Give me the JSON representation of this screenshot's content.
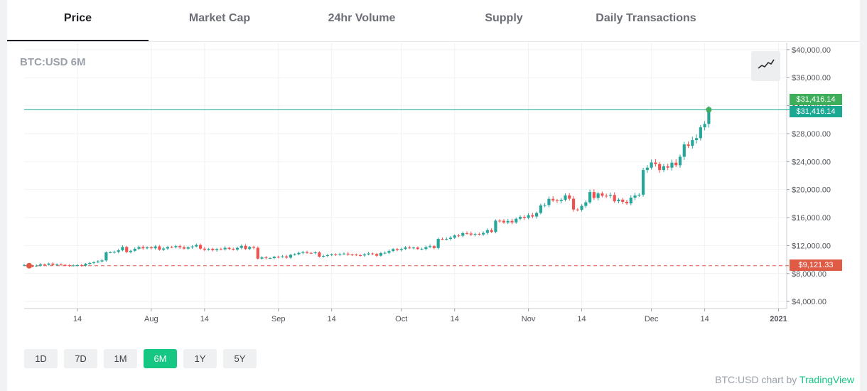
{
  "tabs": [
    {
      "label": "Price",
      "active": true
    },
    {
      "label": "Market Cap",
      "active": false
    },
    {
      "label": "24hr Volume",
      "active": false
    },
    {
      "label": "Supply",
      "active": false
    },
    {
      "label": "Daily Transactions",
      "active": false
    }
  ],
  "ticker_label": "BTC:USD 6M",
  "chart_type_icon": "line-chart-icon",
  "price_tag": "$31,416.14",
  "price_line_tag": "$31,416.14",
  "start_tag": "$9,121.33",
  "range_buttons": [
    {
      "label": "1D",
      "active": false
    },
    {
      "label": "7D",
      "active": false
    },
    {
      "label": "1M",
      "active": false
    },
    {
      "label": "6M",
      "active": true
    },
    {
      "label": "1Y",
      "active": false
    },
    {
      "label": "5Y",
      "active": false
    }
  ],
  "credit": {
    "prefix": "BTC:USD chart by",
    "link": "TradingView"
  },
  "colors": {
    "up": "#26a69a",
    "down": "#ef5350",
    "price_line": "#1aa892",
    "start_line": "#e05b46",
    "accent": "#16c784"
  },
  "chart_data": {
    "type": "candlestick",
    "title": "BTC:USD 6M",
    "y_ticks": [
      "$4,000.00",
      "$8,000.00",
      "$12,000.00",
      "$16,000.00",
      "$20,000.00",
      "$24,000.00",
      "$28,000.00",
      "$32,000.00",
      "$36,000.00",
      "$40,000.00"
    ],
    "ylim": [
      3000,
      41000
    ],
    "x_ticks": [
      {
        "label": "14",
        "date": "2020-07-14"
      },
      {
        "label": "Aug",
        "date": "2020-08-01"
      },
      {
        "label": "14",
        "date": "2020-08-14"
      },
      {
        "label": "Sep",
        "date": "2020-09-01"
      },
      {
        "label": "14",
        "date": "2020-09-14"
      },
      {
        "label": "Oct",
        "date": "2020-10-01"
      },
      {
        "label": "14",
        "date": "2020-10-14"
      },
      {
        "label": "Nov",
        "date": "2020-11-01"
      },
      {
        "label": "14",
        "date": "2020-11-14"
      },
      {
        "label": "Dec",
        "date": "2020-12-01"
      },
      {
        "label": "14",
        "date": "2020-12-14"
      },
      {
        "label": "2021",
        "date": "2021-01-01"
      }
    ],
    "xlim": [
      "2020-07-01",
      "2021-01-03"
    ],
    "last_price": 31416.14,
    "start_price": 9121.33,
    "close_series": {
      "start": "2020-07-01",
      "closes": [
        9230,
        9090,
        9060,
        9130,
        9310,
        9250,
        9430,
        9240,
        9290,
        9240,
        9190,
        9130,
        9160,
        9200,
        9130,
        9390,
        9530,
        9610,
        9730,
        9880,
        11030,
        11030,
        11100,
        11320,
        11800,
        11080,
        11250,
        11540,
        11790,
        11610,
        11750,
        11620,
        11880,
        11400,
        11580,
        11790,
        11770,
        11930,
        11750,
        11560,
        11750,
        11870,
        12080,
        11560,
        11400,
        11520,
        11330,
        11480,
        11460,
        11680,
        11540,
        11420,
        11670,
        11960,
        11510,
        11800,
        11680,
        10130,
        10300,
        10210,
        10210,
        10390,
        10370,
        10450,
        10280,
        10680,
        10770,
        10960,
        11050,
        10950,
        10930,
        11020,
        10420,
        10520,
        10620,
        10740,
        10690,
        10790,
        10850,
        10720,
        10710,
        10620,
        10590,
        10730,
        10870,
        10790,
        10550,
        10920,
        10970,
        11220,
        11500,
        11360,
        11510,
        11720,
        11680,
        11710,
        11510,
        11510,
        11780,
        11930,
        11650,
        12950,
        12930,
        12950,
        13120,
        13440,
        13400,
        13780,
        13720,
        13560,
        13660,
        13590,
        13810,
        14200,
        13950,
        15560,
        15540,
        15300,
        15520,
        15310,
        15830,
        16100,
        15950,
        16340,
        16150,
        16660,
        17740,
        17790,
        18680,
        18450,
        18370,
        18540,
        19170,
        18700,
        17150,
        17110,
        17670,
        18180,
        19650,
        18800,
        19450,
        19120,
        19100,
        19230,
        18330,
        18560,
        18250,
        18030,
        18850,
        19160,
        19270,
        22800,
        23140,
        23880,
        23640,
        22800,
        23320,
        23140,
        23850,
        23480,
        24690,
        26450,
        26250,
        27080,
        27350,
        28900,
        29380,
        31416
      ]
    }
  }
}
